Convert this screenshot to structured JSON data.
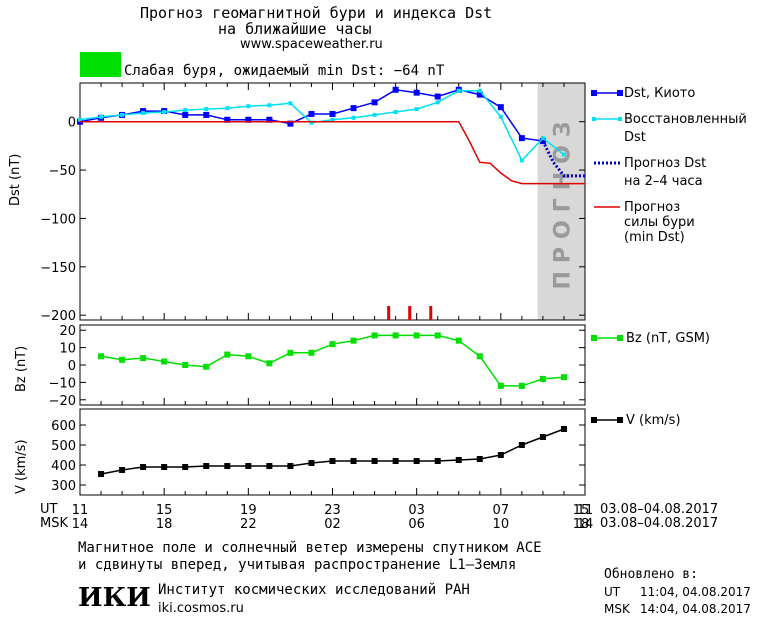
{
  "header": {
    "title_line1": "Прогноз геомагнитной бури и индекса Dst",
    "title_line2": "на ближайшие часы",
    "url": "www.spaceweather.ru",
    "storm_text": "Слабая буря, ожидаемый min Dst: −64 nT",
    "storm_color": "#00e000"
  },
  "chart_data": [
    {
      "type": "line",
      "panel": "dst",
      "ylabel": "Dst (nT)",
      "ylim": [
        -205,
        40
      ],
      "yticks": [
        0,
        -50,
        -100,
        -150,
        -200
      ],
      "xlim": [
        0,
        24
      ],
      "forecast_band_start": 21.75,
      "forecast_band_end": 24,
      "forecast_label": "ПРОГНОЗ",
      "event_marks": [
        14.67,
        15.67,
        16.67
      ],
      "series": [
        {
          "name": "Dst, Киото",
          "color": "#0000ff",
          "marker": "square",
          "x": [
            0,
            1,
            2,
            3,
            4,
            5,
            6,
            7,
            8,
            9,
            10,
            11,
            12,
            13,
            14,
            15,
            16,
            17,
            18,
            19,
            20,
            21,
            22
          ],
          "y": [
            0,
            4,
            7,
            11,
            11,
            7,
            7,
            2,
            2,
            2,
            -2,
            8,
            8,
            14,
            20,
            33,
            30,
            26,
            33,
            28,
            15,
            -17,
            -20
          ]
        },
        {
          "name": "Восстановленный Dst",
          "color": "#00e0f0",
          "marker": "square-small",
          "x": [
            0,
            1,
            2,
            3,
            4,
            5,
            6,
            7,
            8,
            9,
            10,
            11,
            12,
            13,
            14,
            15,
            16,
            17,
            18,
            19,
            20,
            21,
            22,
            23
          ],
          "y": [
            2,
            5,
            7,
            9,
            10,
            12,
            13,
            14,
            16,
            17,
            19,
            -1,
            2,
            4,
            7,
            10,
            13,
            20,
            32,
            32,
            5,
            -40,
            -17,
            -34
          ]
        },
        {
          "name": "Прогноз Dst на 2-4 часа",
          "color": "#0000c0",
          "style": "dotted",
          "x": [
            22,
            22.5,
            23,
            23.5,
            24
          ],
          "y": [
            -20,
            -42,
            -56,
            -56,
            -56
          ]
        },
        {
          "name": "Прогноз силы бури (min Dst)",
          "color": "#e00000",
          "style": "solid",
          "x": [
            0,
            2,
            4,
            6,
            8,
            10,
            12,
            14,
            16,
            18,
            18.5,
            19,
            19.5,
            20,
            20.5,
            21,
            21.5,
            22,
            24
          ],
          "y": [
            0,
            0,
            0,
            0,
            0,
            0,
            0,
            0,
            0,
            0,
            -20,
            -42,
            -43,
            -53,
            -61,
            -64,
            -64,
            -64,
            -64
          ]
        }
      ]
    },
    {
      "type": "line",
      "panel": "bz",
      "ylabel": "Bz (nT)",
      "ylim": [
        -23,
        23
      ],
      "yticks": [
        20,
        10,
        0,
        -10,
        -20
      ],
      "xlim": [
        0,
        24
      ],
      "series": [
        {
          "name": "Bz (nT, GSM)",
          "color": "#00e000",
          "marker": "square",
          "x": [
            1,
            2,
            3,
            4,
            5,
            6,
            7,
            8,
            9,
            10,
            11,
            12,
            13,
            14,
            15,
            16,
            17,
            18,
            19,
            20,
            21,
            22,
            23
          ],
          "y": [
            5,
            3,
            4,
            2,
            0,
            -1,
            6,
            5,
            1,
            7,
            7,
            12,
            14,
            17,
            17,
            17,
            17,
            14,
            5,
            -12,
            -12,
            -8,
            -7
          ]
        }
      ]
    },
    {
      "type": "line",
      "panel": "v",
      "ylabel": "V (km/s)",
      "ylim": [
        250,
        680
      ],
      "yticks": [
        600,
        500,
        400,
        300
      ],
      "xlim": [
        0,
        24
      ],
      "series": [
        {
          "name": "V (km/s)",
          "color": "#000000",
          "marker": "square",
          "x": [
            1,
            2,
            3,
            4,
            5,
            6,
            7,
            8,
            9,
            10,
            11,
            12,
            13,
            14,
            15,
            16,
            17,
            18,
            19,
            20,
            21,
            22,
            23
          ],
          "y": [
            355,
            375,
            390,
            390,
            390,
            395,
            395,
            395,
            395,
            395,
            410,
            420,
            420,
            420,
            420,
            420,
            420,
            425,
            430,
            450,
            500,
            540,
            580
          ]
        }
      ]
    }
  ],
  "axis": {
    "ut_label": "UT",
    "msk_label": "MSK",
    "ut_ticks": [
      "11",
      "15",
      "19",
      "23",
      "03",
      "07",
      "11",
      "15"
    ],
    "msk_ticks": [
      "14",
      "18",
      "22",
      "02",
      "06",
      "10",
      "14",
      "18"
    ],
    "date_range_ut": "03.08–04.08.2017",
    "date_range_msk": "03.08–04.08.2017"
  },
  "legend": {
    "dst_kyoto": "Dst, Киото",
    "restored_line1": "Восстановленный",
    "restored_line2": "Dst",
    "forecast_line1": "Прогноз Dst",
    "forecast_line2": "на 2–4 часа",
    "storm_line1": "Прогноз",
    "storm_line2": "силы бури",
    "storm_line3": "(min Dst)",
    "bz": "Bz (nT, GSM)",
    "v": "V (km/s)"
  },
  "footer": {
    "line1": "Магнитное поле и солнечный ветер измерены спутником ACE",
    "line2": "и сдвинуты вперед, учитывая распространение L1–Земля",
    "logo": "ИКИ",
    "institute": "Институт космических исследований РАН",
    "site": "iki.cosmos.ru",
    "updated_label": "Обновлено в:",
    "updated_ut_label": "UT",
    "updated_ut": "11:04, 04.08.2017",
    "updated_msk_label": "MSK",
    "updated_msk": "14:04, 04.08.2017"
  }
}
